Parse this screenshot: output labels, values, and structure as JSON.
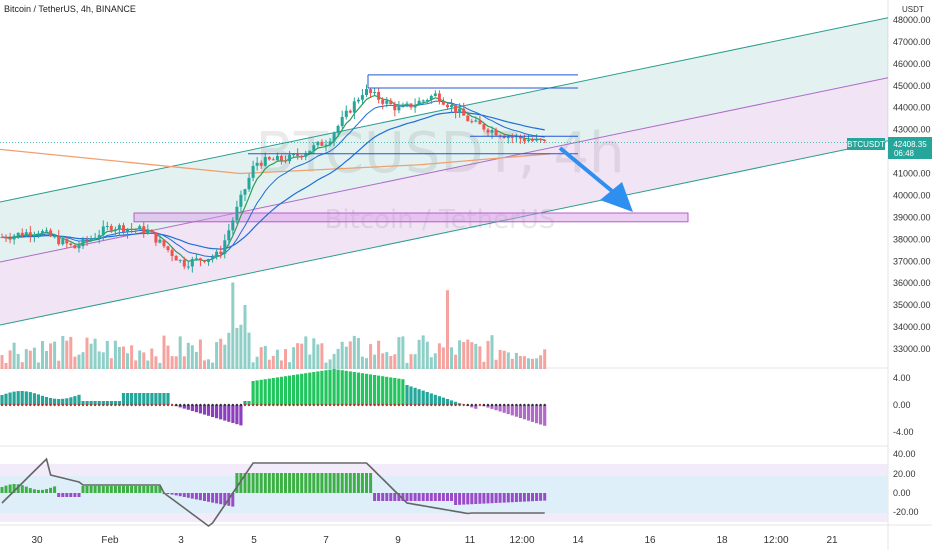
{
  "header": {
    "symbol_line": "Bitcoin / TetherUS, 4h, BINANCE",
    "currency": "USDT"
  },
  "watermark": {
    "ticker": "BTCUSDT, 4h",
    "name": "Bitcoin / TetherUS"
  },
  "price_tag": {
    "ticker": "BTCUSDT",
    "price": "42408.35",
    "countdown": "06:48"
  },
  "colors": {
    "up": "#26a69a",
    "down": "#ef5350",
    "up_vol": "#8fcfc8",
    "down_vol": "#f5a39e",
    "channel_green": "#2a9d8f",
    "channel_purple": "#b06bc8",
    "ema_green": "#2e9d57",
    "ema_blue": "#1f6fd6",
    "ema_orange": "#f0a070",
    "line_blue": "#2256d6",
    "zone": "#d89ae8",
    "arrow": "#2f8ff0",
    "macd_up": "#22c55e",
    "macd_down_dark": "#8b3fbf",
    "osc_line": "#666666"
  },
  "chart_data": {
    "type": "candlestick",
    "title": "Bitcoin / TetherUS, 4h, BINANCE",
    "timeframe": "4h",
    "y_axis": {
      "min": 33000,
      "max": 48000,
      "ticks": [
        "48000.00",
        "47000.00",
        "46000.00",
        "45000.00",
        "44000.00",
        "43000.00",
        "42000.00",
        "41000.00",
        "40000.00",
        "39000.00",
        "38000.00",
        "37000.00",
        "36000.00",
        "35000.00",
        "34000.00",
        "33000.00"
      ]
    },
    "x_axis_labels": [
      "30",
      "Feb",
      "3",
      "5",
      "7",
      "9",
      "11",
      "12:00",
      "14",
      "16",
      "18",
      "12:00",
      "21"
    ],
    "approx_close_path": [
      {
        "x": "Jan 29",
        "price": 38100
      },
      {
        "x": "Jan 30",
        "price": 38400
      },
      {
        "x": "Jan 31",
        "price": 37600
      },
      {
        "x": "Feb 1",
        "price": 38600
      },
      {
        "x": "Feb 2",
        "price": 38400
      },
      {
        "x": "Feb 3",
        "price": 36900
      },
      {
        "x": "Feb 4",
        "price": 37300
      },
      {
        "x": "Feb 5",
        "price": 41500
      },
      {
        "x": "Feb 6",
        "price": 41700
      },
      {
        "x": "Feb 7",
        "price": 42500
      },
      {
        "x": "Feb 8",
        "price": 44800
      },
      {
        "x": "Feb 9",
        "price": 43900
      },
      {
        "x": "Feb 10",
        "price": 44600
      },
      {
        "x": "Feb 11",
        "price": 43300
      },
      {
        "x": "Feb 11 12:00",
        "price": 42700
      },
      {
        "x": "Feb 12 12:00",
        "price": 42408
      }
    ],
    "last_price": 42408.35,
    "projection_target_zone": [
      38800,
      39200
    ],
    "macd_panel": {
      "ticks": [
        "4.00",
        "0.00",
        "-4.00"
      ]
    },
    "oscillator_panel": {
      "ticks": [
        "40.00",
        "20.00",
        "0.00",
        "-20.00"
      ]
    }
  }
}
